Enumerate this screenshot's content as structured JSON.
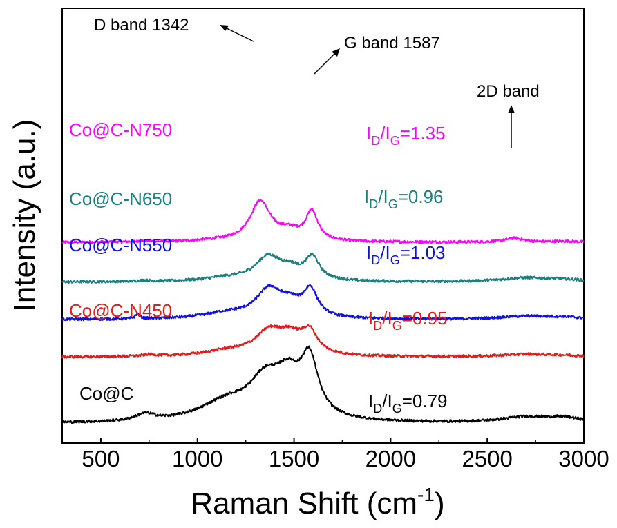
{
  "chart_data": {
    "type": "line",
    "xlabel": "Raman Shift (cm",
    "xlabel_sup": "-1",
    "xlabel_end": ")",
    "ylabel": "Intensity (a.u.)",
    "xlim": [
      300,
      3000
    ],
    "xticks": [
      500,
      1000,
      1500,
      2000,
      2500,
      3000
    ],
    "grid": false,
    "y_stacked": true,
    "series": [
      {
        "name": "Co@C-N750",
        "color": "#ff00ff",
        "ratio": "1.35",
        "baseline": 5.9,
        "peaks": [
          [
            720,
            40,
            0.05
          ],
          [
            1100,
            150,
            0.05
          ],
          [
            1325,
            65,
            1.8
          ],
          [
            1475,
            70,
            0.4
          ],
          [
            1592,
            38,
            1.3
          ],
          [
            2640,
            60,
            0.18
          ],
          [
            2900,
            90,
            0.04
          ]
        ]
      },
      {
        "name": "Co@C-N650",
        "color": "#1a8080",
        "ratio": "0.96",
        "baseline": 4.1,
        "peaks": [
          [
            720,
            40,
            0.05
          ],
          [
            1150,
            150,
            0.15
          ],
          [
            1365,
            80,
            1.05
          ],
          [
            1480,
            70,
            0.45
          ],
          [
            1595,
            45,
            1.0
          ],
          [
            2700,
            160,
            0.18
          ],
          [
            2900,
            110,
            0.08
          ]
        ]
      },
      {
        "name": "Co@C-N550",
        "color": "#1010e6",
        "ratio": "1.03",
        "baseline": 2.4,
        "peaks": [
          [
            690,
            14,
            0.22
          ],
          [
            1150,
            150,
            0.25
          ],
          [
            1370,
            80,
            1.25
          ],
          [
            1480,
            70,
            0.55
          ],
          [
            1585,
            45,
            1.2
          ],
          [
            2700,
            160,
            0.14
          ],
          [
            2900,
            110,
            0.08
          ]
        ]
      },
      {
        "name": "Co@C-N450",
        "color": "#e61a1a",
        "ratio": "0.95",
        "baseline": 0.7,
        "peaks": [
          [
            750,
            40,
            0.08
          ],
          [
            1150,
            150,
            0.22
          ],
          [
            1370,
            90,
            1.0
          ],
          [
            1480,
            80,
            0.75
          ],
          [
            1580,
            50,
            0.95
          ],
          [
            2700,
            160,
            0.12
          ],
          [
            2900,
            110,
            0.05
          ]
        ]
      },
      {
        "name": "Co@C",
        "color": "#000000",
        "ratio": "0.79",
        "baseline": -2.3,
        "peaks": [
          [
            730,
            60,
            0.3
          ],
          [
            1150,
            170,
            0.85
          ],
          [
            1350,
            100,
            1.6
          ],
          [
            1470,
            80,
            1.6
          ],
          [
            1580,
            55,
            2.5
          ],
          [
            2700,
            160,
            0.25
          ],
          [
            2900,
            110,
            0.2
          ]
        ]
      }
    ],
    "annotations": {
      "d_band": "D band 1342",
      "g_band": "G band 1587",
      "band_2d": "2D band"
    },
    "ratio_prefix_i": "I",
    "ratio_sub_d": "D",
    "ratio_slash": "/I",
    "ratio_sub_g": "G",
    "ratio_eq": "="
  }
}
